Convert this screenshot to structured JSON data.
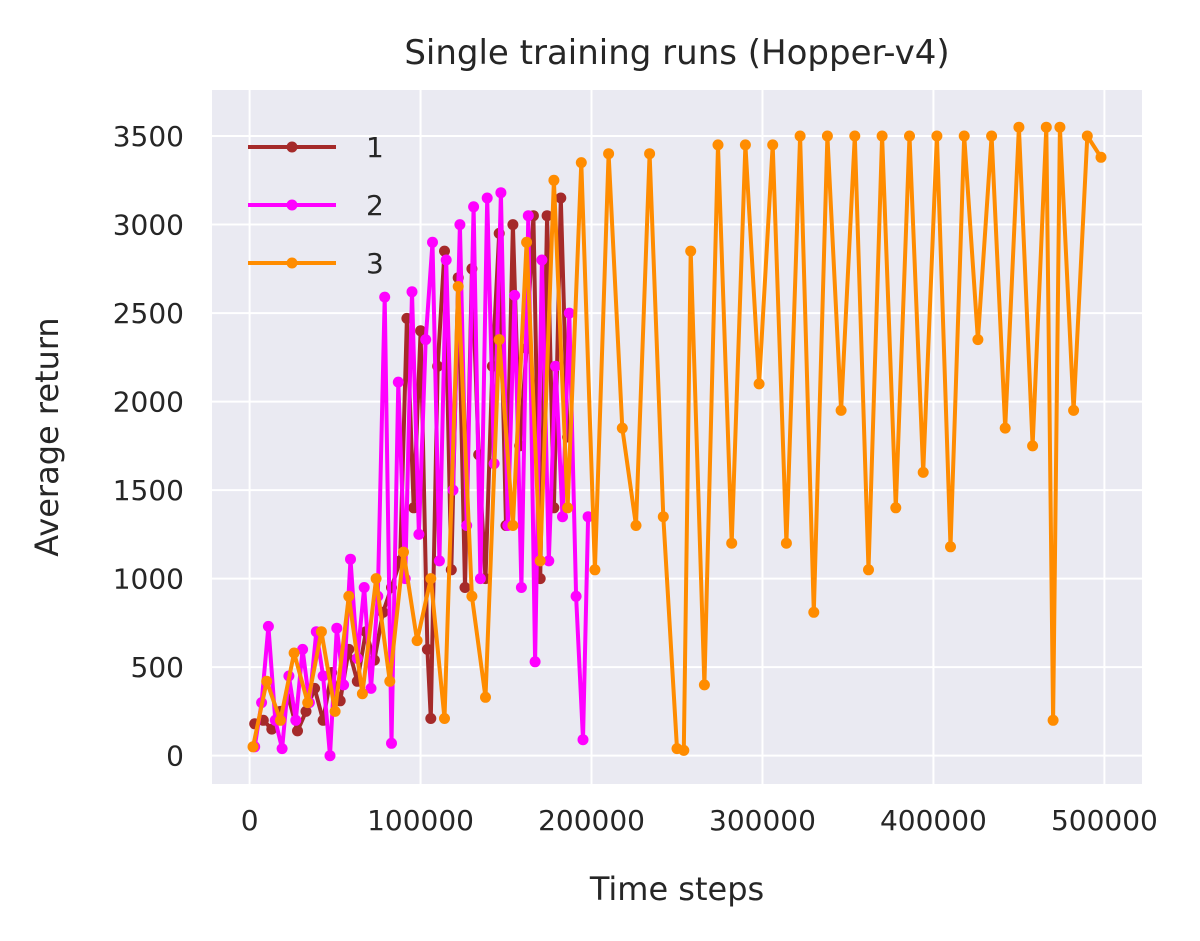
{
  "chart_data": {
    "type": "line",
    "title": "Single training runs (Hopper-v4)",
    "xlabel": "Time steps",
    "ylabel": "Average return",
    "xlim": [
      -22000,
      522000
    ],
    "ylim": [
      -160,
      3760
    ],
    "xticks": [
      0,
      100000,
      200000,
      300000,
      400000,
      500000
    ],
    "xtick_labels": [
      "0",
      "100000",
      "200000",
      "300000",
      "400000",
      "500000"
    ],
    "yticks": [
      0,
      500,
      1000,
      1500,
      2000,
      2500,
      3000,
      3500
    ],
    "ytick_labels": [
      "0",
      "500",
      "1000",
      "1500",
      "2000",
      "2500",
      "3000",
      "3500"
    ],
    "grid": true,
    "legend_position": "top-left",
    "background": "#eaeaf2",
    "series": [
      {
        "name": "1",
        "color": "#a52a2a",
        "x": [
          3000,
          8000,
          13000,
          18000,
          23000,
          28000,
          33000,
          38000,
          43000,
          48000,
          53000,
          58000,
          63000,
          68000,
          73000,
          78000,
          83000,
          88000,
          92000,
          96000,
          100000,
          104000,
          106000,
          110000,
          114000,
          118000,
          122000,
          126000,
          130000,
          134000,
          138000,
          142000,
          146000,
          150000,
          154000,
          158000,
          162000,
          166000,
          170000,
          174000,
          178000,
          182000,
          186000
        ],
        "values": [
          180,
          200,
          150,
          250,
          320,
          140,
          250,
          380,
          200,
          470,
          310,
          600,
          420,
          700,
          540,
          810,
          950,
          1100,
          2470,
          1400,
          2400,
          600,
          210,
          2200,
          2850,
          1050,
          2700,
          950,
          2750,
          1700,
          1000,
          2200,
          2950,
          1300,
          3000,
          1750,
          2300,
          3050,
          1000,
          3050,
          1400,
          3150,
          1800
        ]
      },
      {
        "name": "2",
        "color": "#ff00ff",
        "x": [
          3000,
          7000,
          11000,
          15000,
          19000,
          23000,
          27000,
          31000,
          35000,
          39000,
          43000,
          47000,
          51000,
          55000,
          59000,
          63000,
          67000,
          71000,
          75000,
          79000,
          83000,
          87000,
          91000,
          95000,
          99000,
          103000,
          107000,
          111000,
          115000,
          119000,
          123000,
          127000,
          131000,
          135000,
          139000,
          143000,
          147000,
          151000,
          155000,
          159000,
          163000,
          167000,
          171000,
          175000,
          179000,
          183000,
          187000,
          191000,
          195000,
          198000
        ],
        "values": [
          50,
          300,
          730,
          200,
          40,
          450,
          200,
          600,
          300,
          700,
          450,
          0,
          720,
          400,
          1110,
          550,
          950,
          380,
          900,
          2590,
          70,
          2110,
          1000,
          2620,
          1250,
          2350,
          2900,
          1100,
          2800,
          1500,
          3000,
          1300,
          3100,
          1000,
          3150,
          1650,
          3180,
          1300,
          2600,
          950,
          3050,
          530,
          2800,
          1100,
          2200,
          1350,
          2500,
          900,
          90,
          1350
        ]
      },
      {
        "name": "3",
        "color": "#ff8c00",
        "x": [
          2000,
          10000,
          18000,
          26000,
          34000,
          42000,
          50000,
          58000,
          66000,
          74000,
          82000,
          90000,
          98000,
          106000,
          114000,
          122000,
          130000,
          138000,
          146000,
          154000,
          162000,
          170000,
          178000,
          186000,
          194000,
          202000,
          210000,
          218000,
          226000,
          234000,
          242000,
          250000,
          254000,
          258000,
          266000,
          274000,
          282000,
          290000,
          298000,
          306000,
          314000,
          322000,
          330000,
          338000,
          346000,
          354000,
          362000,
          370000,
          378000,
          386000,
          394000,
          402000,
          410000,
          418000,
          426000,
          434000,
          442000,
          450000,
          458000,
          466000,
          470000,
          474000,
          482000,
          490000,
          498000
        ],
        "values": [
          50,
          420,
          200,
          580,
          300,
          700,
          250,
          900,
          350,
          1000,
          420,
          1150,
          650,
          1000,
          210,
          2650,
          900,
          330,
          2350,
          1300,
          2900,
          1100,
          3250,
          1400,
          3350,
          1050,
          3400,
          1850,
          1300,
          3400,
          1350,
          40,
          30,
          2850,
          400,
          3450,
          1200,
          3450,
          2100,
          3450,
          1200,
          3500,
          810,
          3500,
          1950,
          3500,
          1050,
          3500,
          1400,
          3500,
          1600,
          3500,
          1180,
          3500,
          2350,
          3500,
          1850,
          3550,
          1750,
          3550,
          200,
          3550,
          1950,
          3500,
          3380
        ]
      }
    ]
  }
}
